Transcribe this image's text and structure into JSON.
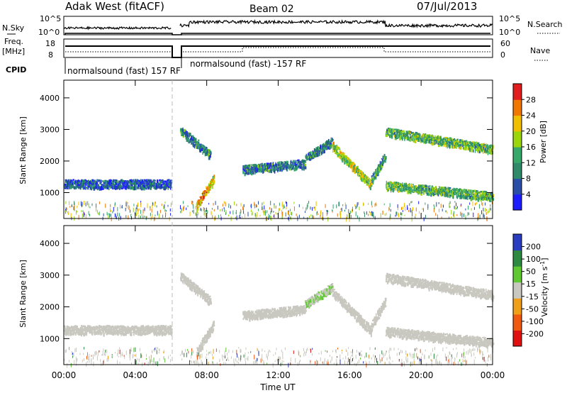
{
  "header": {
    "station": "Adak West (fitACF)",
    "beam": "Beam 02",
    "date": "07/Jul/2013"
  },
  "panels": {
    "nsky_label": "N.Sky",
    "nsky_ticks": [
      "10^5",
      "10^0"
    ],
    "nsearch_label": "N.Search",
    "nsearch_ticks": [
      "10^5",
      "10^0"
    ],
    "freq_label_1": "Freq.",
    "freq_label_2": "[MHz]",
    "freq_ticks": [
      "18",
      "8"
    ],
    "nave_label": "Nave",
    "nave_ticks": [
      "60",
      "0"
    ],
    "cpid_label": "CPID",
    "cpid_1": "normalsound (fast) 157 RF",
    "cpid_2": "normalsound (fast) -157 RF"
  },
  "x_axis": {
    "label": "Time UT",
    "ticks": [
      "00:00",
      "04:00",
      "08:00",
      "12:00",
      "16:00",
      "20:00",
      "00:00"
    ]
  },
  "colors": {
    "power": [
      "#1c1cff",
      "#2a4ea8",
      "#2f8a6a",
      "#36a86a",
      "#9ad60a",
      "#f0c000",
      "#f07800",
      "#e11c1c"
    ],
    "velocity": [
      "#e01010",
      "#f05a10",
      "#f0a018",
      "#c8c8c0",
      "#60c830",
      "#2e8a40",
      "#2a3cc0"
    ]
  },
  "chart_data": [
    {
      "type": "heatmap",
      "title": "Power",
      "ylabel": "Slant Range [km]",
      "xlabel": "",
      "ylim": [
        180,
        4560
      ],
      "xlim": [
        0,
        24
      ],
      "yticks": [
        "1000",
        "2000",
        "3000",
        "4000"
      ],
      "colorbar": {
        "label": "Power [dB]",
        "ticks": [
          "4",
          "8",
          "12",
          "16",
          "20",
          "24",
          "28"
        ],
        "range": [
          0,
          32
        ]
      },
      "features": [
        {
          "start_hr": 0.0,
          "end_hr": 6.0,
          "range_start_km": 1300,
          "range_end_km": 1300,
          "value": 6
        },
        {
          "start_hr": 6.5,
          "end_hr": 8.2,
          "range_start_km": 3000,
          "range_end_km": 2200,
          "value": 10
        },
        {
          "start_hr": 7.4,
          "end_hr": 8.4,
          "range_start_km": 600,
          "range_end_km": 1500,
          "value": 22
        },
        {
          "start_hr": 10.0,
          "end_hr": 13.5,
          "range_start_km": 1750,
          "range_end_km": 1950,
          "value": 10
        },
        {
          "start_hr": 13.5,
          "end_hr": 15.0,
          "range_start_km": 2100,
          "range_end_km": 2650,
          "value": 10
        },
        {
          "start_hr": 15.0,
          "end_hr": 17.2,
          "range_start_km": 2500,
          "range_end_km": 1250,
          "value": 18
        },
        {
          "start_hr": 17.2,
          "end_hr": 18.0,
          "range_start_km": 1450,
          "range_end_km": 2200,
          "value": 12
        },
        {
          "start_hr": 18.0,
          "end_hr": 24.0,
          "range_start_km": 2950,
          "range_end_km": 2400,
          "value": 14
        },
        {
          "start_hr": 18.0,
          "end_hr": 24.0,
          "range_start_km": 1250,
          "range_end_km": 900,
          "value": 14
        }
      ]
    },
    {
      "type": "heatmap",
      "title": "Velocity",
      "ylabel": "Slant Range [km]",
      "xlabel": "Time UT",
      "ylim": [
        180,
        4560
      ],
      "xlim": [
        0,
        24
      ],
      "yticks": [
        "1000",
        "2000",
        "3000",
        "4000"
      ],
      "colorbar": {
        "label": "Velocity [m s^-1]",
        "ticks": [
          "-200",
          "-100",
          "-50",
          "-15",
          "15",
          "50",
          "100",
          "200"
        ],
        "range": [
          -250,
          250
        ]
      },
      "features": [
        {
          "start_hr": 0.0,
          "end_hr": 6.0,
          "range_start_km": 1300,
          "range_end_km": 1300,
          "value": 0
        },
        {
          "start_hr": 6.5,
          "end_hr": 8.2,
          "range_start_km": 3000,
          "range_end_km": 2200,
          "value": 0
        },
        {
          "start_hr": 7.4,
          "end_hr": 8.4,
          "range_start_km": 600,
          "range_end_km": 1500,
          "value": 0
        },
        {
          "start_hr": 10.0,
          "end_hr": 13.5,
          "range_start_km": 1750,
          "range_end_km": 1950,
          "value": 0
        },
        {
          "start_hr": 13.5,
          "end_hr": 15.0,
          "range_start_km": 2100,
          "range_end_km": 2650,
          "value": 30
        },
        {
          "start_hr": 15.0,
          "end_hr": 17.2,
          "range_start_km": 2500,
          "range_end_km": 1250,
          "value": 0
        },
        {
          "start_hr": 17.2,
          "end_hr": 18.0,
          "range_start_km": 1450,
          "range_end_km": 2200,
          "value": 0
        },
        {
          "start_hr": 18.0,
          "end_hr": 24.0,
          "range_start_km": 2950,
          "range_end_km": 2400,
          "value": 0
        },
        {
          "start_hr": 18.0,
          "end_hr": 24.0,
          "range_start_km": 1250,
          "range_end_km": 900,
          "value": 0
        }
      ]
    }
  ]
}
